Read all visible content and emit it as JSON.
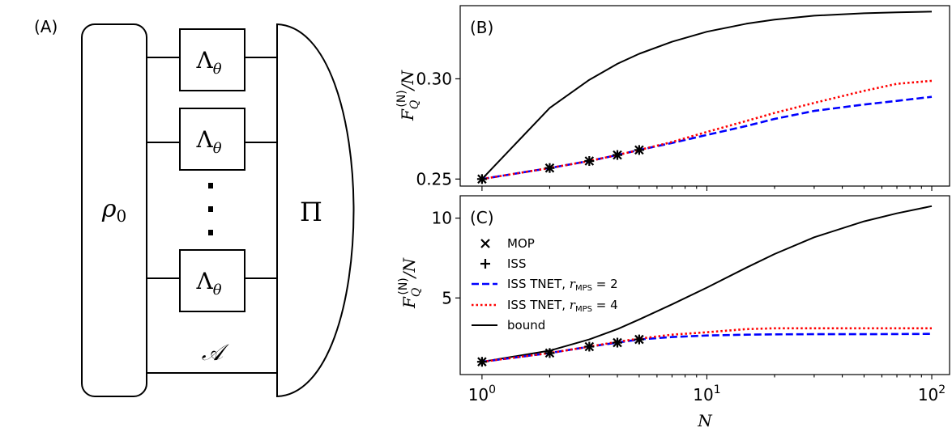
{
  "diagram": {
    "panel_label": "(A)",
    "state_label": "ρ",
    "state_sub": "0",
    "channel_label": "Λ",
    "channel_sub": "θ",
    "ancilla_label": "𝒜",
    "measurement_label": "Π"
  },
  "charts": {
    "x_label": "N",
    "x_ticks": [
      {
        "exp": 0,
        "base": "10",
        "sup": "0"
      },
      {
        "exp": 1,
        "base": "10",
        "sup": "1"
      },
      {
        "exp": 2,
        "base": "10",
        "sup": "2"
      }
    ],
    "legend": [
      {
        "key": "mop",
        "label": "MOP",
        "marker": "x"
      },
      {
        "key": "iss",
        "label": "ISS",
        "marker": "+"
      },
      {
        "key": "tnet2",
        "label_pre": "ISS TNET, ",
        "r": "r",
        "r_sub": "MPS",
        "r_eq": " = 2",
        "style": "dashed",
        "color": "#0000ff"
      },
      {
        "key": "tnet4",
        "label_pre": "ISS TNET, ",
        "r": "r",
        "r_sub": "MPS",
        "r_eq": " = 4",
        "style": "dotted",
        "color": "#ff0000"
      },
      {
        "key": "bound",
        "label": "bound",
        "style": "solid",
        "color": "#000000"
      }
    ]
  },
  "chart_data": [
    {
      "panel_label": "(B)",
      "type": "line",
      "xscale": "log",
      "xlim": [
        0.8,
        120
      ],
      "ylim": [
        0.2465,
        0.3365
      ],
      "yticks": [
        {
          "value": 0.25,
          "label": "0.25"
        },
        {
          "value": 0.3,
          "label": "0.30"
        }
      ],
      "ylabel": {
        "main": "F",
        "sup": "(N)",
        "sub": "Q",
        "tail": "/N"
      },
      "series": [
        {
          "name": "bound",
          "color": "#000000",
          "style": "solid",
          "x": [
            1,
            2,
            3,
            4,
            5,
            7,
            10,
            15,
            20,
            30,
            50,
            70,
            100
          ],
          "y": [
            0.25,
            0.2855,
            0.2995,
            0.3075,
            0.3125,
            0.3185,
            0.3235,
            0.3275,
            0.3295,
            0.3315,
            0.3327,
            0.3332,
            0.3335
          ]
        },
        {
          "name": "ISS TNET, r_MPS = 2",
          "color": "#0000ff",
          "style": "dashed",
          "x": [
            1,
            2,
            3,
            4,
            5,
            7,
            10,
            15,
            20,
            30,
            50,
            70,
            100
          ],
          "y": [
            0.25,
            0.2555,
            0.259,
            0.262,
            0.2645,
            0.268,
            0.272,
            0.2765,
            0.28,
            0.284,
            0.2872,
            0.289,
            0.291
          ]
        },
        {
          "name": "ISS TNET, r_MPS = 4",
          "color": "#ff0000",
          "style": "dotted",
          "x": [
            1,
            2,
            3,
            4,
            5,
            7,
            10,
            15,
            20,
            30,
            50,
            70,
            100
          ],
          "y": [
            0.25,
            0.2555,
            0.259,
            0.262,
            0.2645,
            0.2685,
            0.2735,
            0.279,
            0.283,
            0.288,
            0.294,
            0.2975,
            0.299
          ]
        }
      ],
      "markers": {
        "x": [
          1,
          2,
          3,
          4,
          5
        ],
        "mop": [
          0.25,
          0.2555,
          0.259,
          0.262,
          0.2645
        ],
        "iss": [
          0.25,
          0.2555,
          0.259,
          0.262,
          0.2645
        ]
      }
    },
    {
      "panel_label": "(C)",
      "type": "line",
      "xscale": "log",
      "xlim": [
        0.8,
        120
      ],
      "ylim": [
        0.2,
        11.4
      ],
      "yticks": [
        {
          "value": 5,
          "label": "5"
        },
        {
          "value": 10,
          "label": "10"
        }
      ],
      "ylabel": {
        "main": "F",
        "sup": "(N)",
        "sub": "Q",
        "tail": "/N"
      },
      "series": [
        {
          "name": "bound",
          "color": "#000000",
          "style": "solid",
          "x": [
            1,
            2,
            3,
            4,
            5,
            7,
            10,
            15,
            20,
            30,
            50,
            70,
            100
          ],
          "y": [
            1.0,
            1.7,
            2.4,
            3.05,
            3.65,
            4.6,
            5.65,
            6.9,
            7.75,
            8.8,
            9.8,
            10.3,
            10.75
          ]
        },
        {
          "name": "ISS TNET, r_MPS = 2",
          "color": "#0000ff",
          "style": "dashed",
          "x": [
            1,
            2,
            3,
            4,
            5,
            7,
            10,
            15,
            20,
            30,
            50,
            70,
            100
          ],
          "y": [
            1.0,
            1.55,
            1.95,
            2.2,
            2.4,
            2.55,
            2.65,
            2.7,
            2.72,
            2.73,
            2.73,
            2.74,
            2.75
          ]
        },
        {
          "name": "ISS TNET, r_MPS = 4",
          "color": "#ff0000",
          "style": "dotted",
          "x": [
            1,
            2,
            3,
            4,
            5,
            7,
            10,
            15,
            20,
            30,
            50,
            70,
            100
          ],
          "y": [
            1.0,
            1.55,
            1.95,
            2.25,
            2.45,
            2.7,
            2.85,
            3.05,
            3.1,
            3.1,
            3.1,
            3.1,
            3.1
          ]
        }
      ],
      "markers": {
        "x": [
          1,
          2,
          3,
          4,
          5
        ],
        "mop": [
          1.0,
          1.55,
          1.95,
          2.2,
          2.4
        ],
        "iss": [
          1.0,
          1.55,
          1.95,
          2.2,
          2.4
        ]
      }
    }
  ]
}
